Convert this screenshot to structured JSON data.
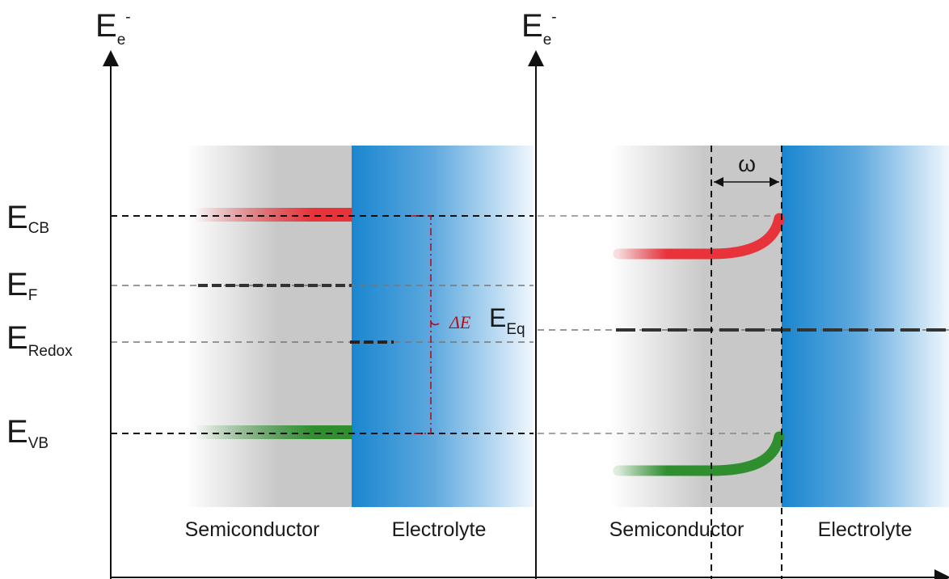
{
  "axis_symbol": {
    "main": "E",
    "sub": "e",
    "sup": "-"
  },
  "levels": [
    {
      "main": "E",
      "sub": "CB"
    },
    {
      "main": "E",
      "sub": "F"
    },
    {
      "main": "E",
      "sub": "Redox"
    },
    {
      "main": "E",
      "sub": "VB"
    }
  ],
  "equilibrium_label": {
    "main": "E",
    "sub": "Eq"
  },
  "delta_label": "ΔE",
  "width_label": "ω",
  "left_panel": {
    "semiconductor": "Semiconductor",
    "electrolyte": "Electrolyte"
  },
  "right_panel": {
    "semiconductor": "Semiconductor",
    "electrolyte": "Electrolyte"
  },
  "colors": {
    "conduction_band": "#e8333a",
    "valence_band": "#2f8f2f",
    "electrolyte": "#1a86cf",
    "semiconductor": "#c9c8c8",
    "delta_line": "#b0101a",
    "axis": "#111111"
  }
}
